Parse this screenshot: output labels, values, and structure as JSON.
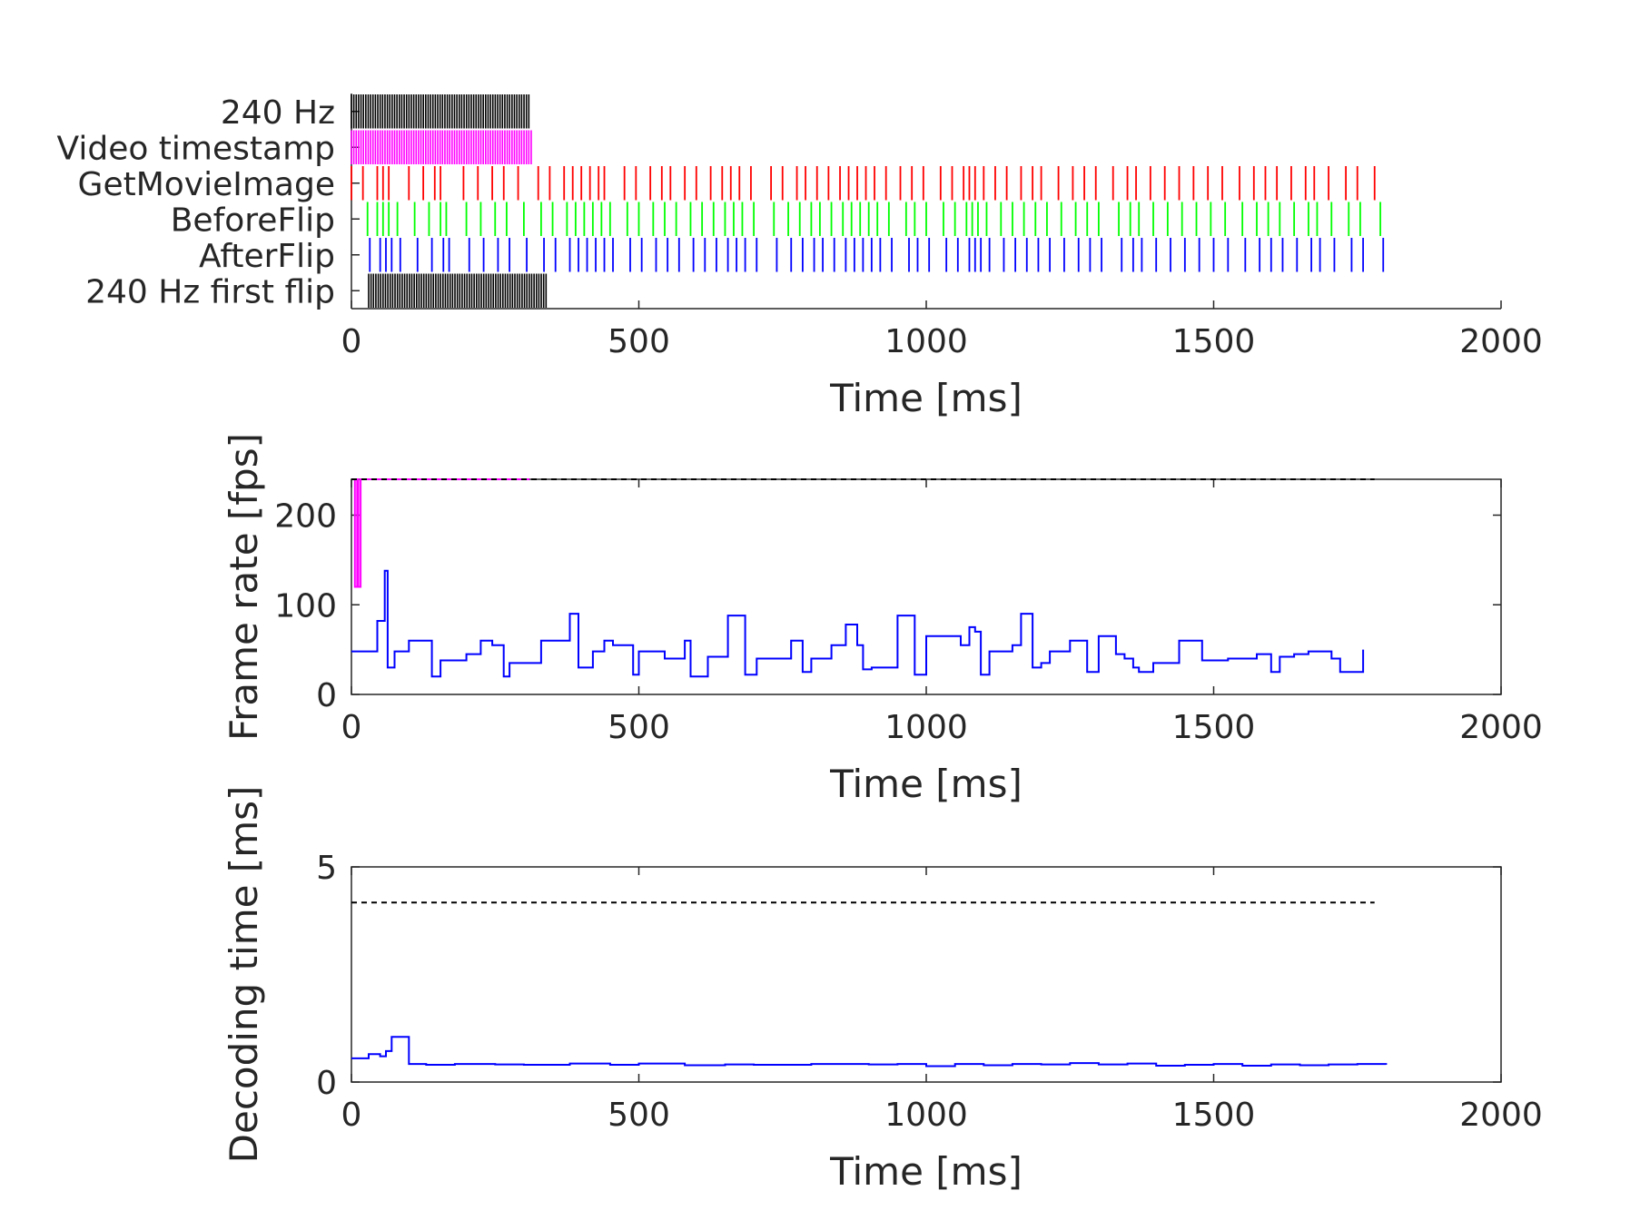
{
  "chart_data": [
    {
      "type": "event-raster",
      "xlabel": "Time [ms]",
      "xlim": [
        0,
        2000
      ],
      "xticks": [
        0,
        500,
        1000,
        1500,
        2000
      ],
      "rows": [
        {
          "name": "240 Hz",
          "color": "#000000",
          "dense": true,
          "range": [
            0,
            310
          ],
          "interval": 4.17
        },
        {
          "name": "Video timestamp",
          "color": "#ff00ff",
          "dense": true,
          "range": [
            0,
            315
          ],
          "interval": 4.17
        },
        {
          "name": "GetMovieImage",
          "color": "#ff0000",
          "events": [
            0,
            20,
            45,
            55,
            65,
            100,
            125,
            145,
            155,
            195,
            220,
            245,
            265,
            290,
            325,
            345,
            370,
            385,
            400,
            415,
            430,
            440,
            475,
            495,
            520,
            540,
            555,
            580,
            600,
            625,
            645,
            660,
            675,
            695,
            730,
            750,
            775,
            790,
            810,
            830,
            850,
            865,
            880,
            895,
            910,
            930,
            955,
            975,
            995,
            1025,
            1045,
            1065,
            1075,
            1085,
            1100,
            1120,
            1140,
            1165,
            1185,
            1200,
            1230,
            1255,
            1275,
            1295,
            1325,
            1350,
            1365,
            1390,
            1415,
            1440,
            1465,
            1490,
            1515,
            1545,
            1570,
            1590,
            1610,
            1635,
            1660,
            1675,
            1700,
            1730,
            1750,
            1780
          ]
        },
        {
          "name": "BeforeFlip",
          "color": "#00ff00",
          "events": [
            28,
            45,
            55,
            65,
            80,
            110,
            135,
            155,
            165,
            200,
            225,
            250,
            270,
            300,
            330,
            350,
            375,
            390,
            405,
            420,
            435,
            450,
            480,
            500,
            525,
            545,
            565,
            590,
            610,
            630,
            650,
            665,
            680,
            700,
            735,
            760,
            780,
            800,
            815,
            835,
            855,
            870,
            885,
            900,
            915,
            935,
            965,
            980,
            1000,
            1030,
            1050,
            1070,
            1080,
            1090,
            1105,
            1130,
            1150,
            1170,
            1190,
            1210,
            1235,
            1260,
            1280,
            1300,
            1335,
            1355,
            1370,
            1395,
            1420,
            1445,
            1470,
            1495,
            1520,
            1550,
            1575,
            1595,
            1615,
            1640,
            1665,
            1680,
            1705,
            1735,
            1755,
            1790
          ]
        },
        {
          "name": "AfterFlip",
          "color": "#0000ff",
          "events": [
            32,
            50,
            60,
            70,
            85,
            115,
            140,
            160,
            170,
            205,
            230,
            255,
            275,
            305,
            335,
            355,
            380,
            395,
            410,
            425,
            440,
            455,
            485,
            505,
            530,
            550,
            570,
            595,
            615,
            635,
            655,
            670,
            685,
            705,
            740,
            765,
            785,
            805,
            820,
            840,
            860,
            875,
            890,
            905,
            920,
            940,
            970,
            985,
            1005,
            1035,
            1055,
            1075,
            1085,
            1095,
            1110,
            1135,
            1155,
            1175,
            1195,
            1215,
            1240,
            1265,
            1285,
            1305,
            1340,
            1360,
            1375,
            1400,
            1425,
            1450,
            1475,
            1500,
            1525,
            1555,
            1580,
            1600,
            1620,
            1645,
            1670,
            1685,
            1710,
            1740,
            1760,
            1795
          ]
        },
        {
          "name": "240 Hz first flip",
          "color": "#000000",
          "dense": true,
          "range": [
            30,
            340
          ],
          "interval": 4.17
        }
      ]
    },
    {
      "type": "line",
      "step": true,
      "xlabel": "Time [ms]",
      "ylabel": "Frame rate [fps]",
      "xlim": [
        0,
        2000
      ],
      "ylim": [
        0,
        240
      ],
      "xticks": [
        0,
        500,
        1000,
        1500,
        2000
      ],
      "yticks": [
        0,
        100,
        200
      ],
      "series": [
        {
          "color": "#ff00ff",
          "x": [
            0,
            4,
            6,
            8,
            10,
            12,
            14,
            16,
            310
          ],
          "y": [
            240,
            240,
            120,
            120,
            240,
            120,
            120,
            240,
            240
          ]
        },
        {
          "color": "#0000ff",
          "x": [
            0,
            25,
            45,
            50,
            58,
            63,
            75,
            100,
            140,
            155,
            200,
            225,
            245,
            265,
            275,
            290,
            330,
            355,
            380,
            395,
            420,
            440,
            455,
            490,
            500,
            530,
            545,
            580,
            590,
            620,
            640,
            655,
            670,
            685,
            705,
            740,
            765,
            785,
            800,
            835,
            860,
            880,
            890,
            905,
            920,
            950,
            955,
            980,
            1000,
            1030,
            1060,
            1075,
            1085,
            1095,
            1110,
            1120,
            1150,
            1165,
            1185,
            1200,
            1215,
            1250,
            1280,
            1300,
            1330,
            1345,
            1360,
            1370,
            1395,
            1440,
            1455,
            1480,
            1525,
            1575,
            1600,
            1615,
            1640,
            1665,
            1705,
            1720,
            1760
          ],
          "y": [
            48,
            48,
            82,
            82,
            138,
            30,
            48,
            60,
            20,
            38,
            45,
            60,
            55,
            20,
            35,
            35,
            60,
            60,
            90,
            30,
            48,
            60,
            55,
            22,
            48,
            48,
            40,
            60,
            20,
            42,
            42,
            88,
            88,
            22,
            40,
            40,
            60,
            25,
            40,
            55,
            78,
            55,
            28,
            30,
            30,
            88,
            88,
            22,
            65,
            65,
            55,
            75,
            70,
            22,
            48,
            48,
            55,
            90,
            30,
            35,
            48,
            60,
            25,
            65,
            45,
            40,
            30,
            25,
            35,
            60,
            60,
            38,
            40,
            45,
            25,
            42,
            45,
            48,
            40,
            25,
            50
          ]
        },
        {
          "color": "#000000",
          "dashed": true,
          "x": [
            0,
            1780
          ],
          "y": [
            240,
            240
          ]
        }
      ]
    },
    {
      "type": "line",
      "step": true,
      "xlabel": "Time [ms]",
      "ylabel": "Decoding time [ms]",
      "xlim": [
        0,
        2000
      ],
      "ylim": [
        0,
        5
      ],
      "xticks": [
        0,
        500,
        1000,
        1500,
        2000
      ],
      "yticks": [
        0,
        5
      ],
      "series": [
        {
          "color": "#0000ff",
          "x": [
            0,
            30,
            50,
            60,
            70,
            100,
            130,
            180,
            250,
            300,
            380,
            450,
            500,
            580,
            650,
            700,
            800,
            900,
            950,
            1000,
            1050,
            1100,
            1150,
            1200,
            1250,
            1300,
            1350,
            1400,
            1450,
            1500,
            1550,
            1600,
            1650,
            1700,
            1750,
            1800
          ],
          "y": [
            0.55,
            0.65,
            0.6,
            0.72,
            1.05,
            0.42,
            0.4,
            0.42,
            0.41,
            0.4,
            0.43,
            0.4,
            0.43,
            0.39,
            0.41,
            0.4,
            0.42,
            0.41,
            0.42,
            0.37,
            0.42,
            0.39,
            0.42,
            0.41,
            0.44,
            0.41,
            0.43,
            0.38,
            0.4,
            0.42,
            0.38,
            0.41,
            0.39,
            0.41,
            0.42,
            0.4
          ]
        },
        {
          "color": "#000000",
          "dashed": true,
          "x": [
            0,
            1780
          ],
          "y": [
            4.17,
            4.17
          ]
        }
      ]
    }
  ]
}
